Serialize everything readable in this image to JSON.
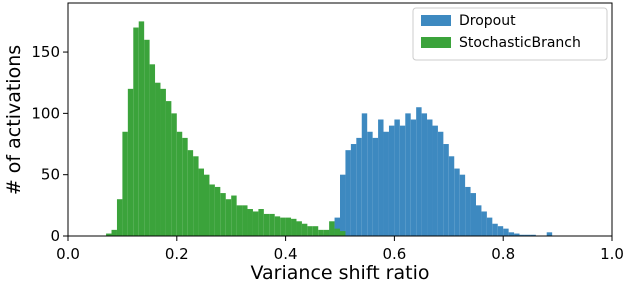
{
  "chart_data": {
    "type": "histogram",
    "xlabel": "Variance shift ratio",
    "ylabel": "# of activations",
    "xlim": [
      0,
      1
    ],
    "ylim": [
      0,
      190
    ],
    "xticks": [
      {
        "value": 0,
        "label": "0.0"
      },
      0.2,
      0.4,
      0.6,
      0.8,
      {
        "value": 1,
        "label": "1.0"
      }
    ],
    "yticks": [
      0,
      50,
      100,
      150
    ],
    "legend": "upper right",
    "series": [
      {
        "name": "Dropout",
        "color": "#3d89c0",
        "bins": [
          0.47,
          0.48,
          0.49,
          0.5,
          0.51,
          0.52,
          0.53,
          0.54,
          0.55,
          0.56,
          0.57,
          0.58,
          0.59,
          0.6,
          0.61,
          0.62,
          0.63,
          0.64,
          0.65,
          0.66,
          0.67,
          0.68,
          0.69,
          0.7,
          0.71,
          0.72,
          0.73,
          0.74,
          0.75,
          0.76,
          0.77,
          0.78,
          0.79,
          0.8,
          0.81,
          0.82,
          0.83,
          0.84,
          0.85,
          0.86,
          0.87,
          0.88,
          0.89
        ],
        "values": [
          2,
          5,
          15,
          50,
          70,
          75,
          80,
          100,
          85,
          80,
          95,
          85,
          90,
          95,
          90,
          100,
          95,
          105,
          100,
          95,
          90,
          85,
          75,
          65,
          55,
          50,
          40,
          35,
          25,
          20,
          15,
          10,
          8,
          6,
          3,
          2,
          1,
          1,
          1,
          0,
          0,
          3
        ]
      },
      {
        "name": "StochasticBranch",
        "color": "#3ba33b",
        "bins": [
          0.07,
          0.08,
          0.09,
          0.1,
          0.11,
          0.12,
          0.13,
          0.14,
          0.15,
          0.16,
          0.17,
          0.18,
          0.19,
          0.2,
          0.21,
          0.22,
          0.23,
          0.24,
          0.25,
          0.26,
          0.27,
          0.28,
          0.29,
          0.3,
          0.31,
          0.32,
          0.33,
          0.34,
          0.35,
          0.36,
          0.37,
          0.38,
          0.39,
          0.4,
          0.41,
          0.42,
          0.43,
          0.44,
          0.45,
          0.46,
          0.47,
          0.48,
          0.49,
          0.5,
          0.51
        ],
        "values": [
          2,
          5,
          30,
          85,
          120,
          170,
          175,
          160,
          140,
          125,
          120,
          110,
          100,
          85,
          80,
          70,
          65,
          55,
          50,
          42,
          40,
          35,
          30,
          33,
          25,
          25,
          22,
          20,
          22,
          18,
          18,
          16,
          15,
          15,
          14,
          12,
          10,
          8,
          8,
          5,
          5,
          12,
          6,
          4
        ]
      }
    ]
  }
}
